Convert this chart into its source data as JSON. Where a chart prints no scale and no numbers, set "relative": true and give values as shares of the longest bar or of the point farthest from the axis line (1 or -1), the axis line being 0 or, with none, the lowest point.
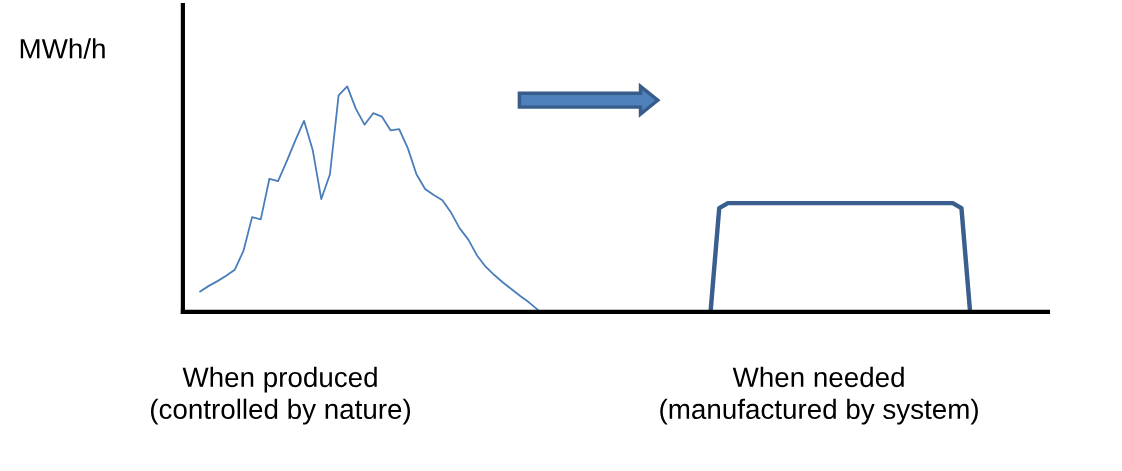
{
  "chart_data": {
    "type": "line",
    "relative": true,
    "ylabel": "MWh/h",
    "marker": "none",
    "line_style": "solid",
    "annotations": [
      "When produced\n(controlled by nature)",
      "When needed\n(manufactured by system)"
    ],
    "categories": [
      null,
      null,
      null,
      null,
      null,
      null,
      null,
      null,
      null,
      null,
      null,
      null,
      null,
      null,
      null,
      null,
      null,
      null,
      null,
      null,
      null,
      null,
      null,
      null,
      null,
      null,
      null,
      null,
      null,
      null,
      null,
      null,
      null,
      null,
      null,
      null,
      null,
      null,
      null,
      null,
      null,
      null,
      null,
      null,
      null,
      null,
      null,
      null,
      null,
      null,
      null,
      null,
      null,
      null,
      null,
      null,
      null,
      null,
      null,
      null,
      null,
      null,
      null,
      null,
      null,
      null,
      null,
      null,
      null,
      null,
      null,
      null,
      null,
      null,
      null,
      null,
      null,
      null,
      null,
      null,
      null,
      null,
      null,
      null,
      null,
      null,
      null,
      null,
      null,
      null,
      null,
      null,
      null,
      null,
      null,
      null,
      null,
      null,
      null,
      null,
      null
    ],
    "series": [
      {
        "color": "#4a7ebb",
        "values": [
          null,
          null,
          0.09,
          0.115,
          0.136,
          0.16,
          0.187,
          0.27,
          0.42,
          0.41,
          0.59,
          0.58,
          0.667,
          0.76,
          0.847,
          0.719,
          0.5,
          0.61,
          0.96,
          1.0,
          0.9,
          0.83,
          0.881,
          0.866,
          0.805,
          0.81,
          0.726,
          0.61,
          0.545,
          0.518,
          0.495,
          0.44,
          0.37,
          0.32,
          0.25,
          0.2,
          0.163,
          0.13,
          0.1,
          0.07,
          0.042,
          0.01,
          null,
          null,
          null,
          null,
          null,
          null,
          null,
          null,
          null,
          null,
          null,
          null,
          null,
          null,
          null,
          null,
          null,
          null,
          null,
          null,
          null,
          null,
          null,
          null,
          null,
          null,
          null,
          null,
          null,
          null,
          null,
          null,
          null,
          null,
          null,
          null,
          null,
          null,
          null,
          null,
          null,
          null,
          null,
          null,
          null,
          null,
          null,
          null,
          null,
          null,
          null,
          null,
          null,
          null,
          null,
          null,
          null,
          null,
          null
        ]
      },
      {
        "color": "#3a5f8f",
        "values": [
          null,
          null,
          null,
          null,
          null,
          null,
          null,
          null,
          null,
          null,
          null,
          null,
          null,
          null,
          null,
          null,
          null,
          null,
          null,
          null,
          null,
          null,
          null,
          null,
          null,
          null,
          null,
          null,
          null,
          null,
          null,
          null,
          null,
          null,
          null,
          null,
          null,
          null,
          null,
          null,
          null,
          null,
          null,
          null,
          null,
          null,
          null,
          null,
          null,
          null,
          null,
          null,
          null,
          null,
          null,
          null,
          null,
          null,
          null,
          null,
          null,
          0.0,
          0.46,
          0.482,
          0.482,
          0.482,
          0.482,
          0.482,
          0.482,
          0.482,
          0.482,
          0.482,
          0.482,
          0.482,
          0.482,
          0.482,
          0.482,
          0.482,
          0.482,
          0.482,
          0.482,
          0.482,
          0.482,
          0.482,
          0.482,
          0.482,
          0.482,
          0.482,
          0.482,
          0.482,
          0.46,
          0.0,
          null,
          null,
          null,
          null,
          null,
          null,
          null,
          null,
          null
        ]
      }
    ]
  }
}
